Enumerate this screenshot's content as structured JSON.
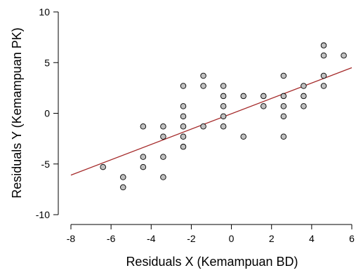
{
  "chart_data": {
    "type": "scatter",
    "title": "",
    "xlabel": "Residuals X (Kemampuan BD)",
    "ylabel": "Residuals Y (Kemampuan PK)",
    "xlim": [
      -8,
      6
    ],
    "ylim": [
      -10,
      10
    ],
    "x_ticks": [
      -8,
      -6,
      -4,
      -2,
      0,
      2,
      4,
      6
    ],
    "y_ticks": [
      -10,
      -5,
      0,
      5,
      10
    ],
    "x_tick_labels": [
      "-8",
      "-6",
      "-4",
      "-2",
      "0",
      "2",
      "4",
      "6"
    ],
    "y_tick_labels": [
      "-10",
      "-5",
      "0",
      "5",
      "10"
    ],
    "grid": false,
    "legend": "none",
    "points": [
      {
        "x": -6.4,
        "y": -5.3
      },
      {
        "x": -5.4,
        "y": -6.3
      },
      {
        "x": -5.4,
        "y": -7.3
      },
      {
        "x": -4.4,
        "y": -1.3
      },
      {
        "x": -4.4,
        "y": -4.3
      },
      {
        "x": -4.4,
        "y": -5.3
      },
      {
        "x": -3.4,
        "y": -1.3
      },
      {
        "x": -3.4,
        "y": -2.3
      },
      {
        "x": -3.4,
        "y": -4.3
      },
      {
        "x": -3.4,
        "y": -6.3
      },
      {
        "x": -2.4,
        "y": 2.7
      },
      {
        "x": -2.4,
        "y": 0.7
      },
      {
        "x": -2.4,
        "y": -0.3
      },
      {
        "x": -2.4,
        "y": -1.3
      },
      {
        "x": -2.4,
        "y": -2.3
      },
      {
        "x": -2.4,
        "y": -3.3
      },
      {
        "x": -1.4,
        "y": 3.7
      },
      {
        "x": -1.4,
        "y": 2.7
      },
      {
        "x": -1.4,
        "y": -1.3
      },
      {
        "x": -0.4,
        "y": 2.7
      },
      {
        "x": -0.4,
        "y": 1.7
      },
      {
        "x": -0.4,
        "y": 0.7
      },
      {
        "x": -0.4,
        "y": -0.3
      },
      {
        "x": -0.4,
        "y": -1.3
      },
      {
        "x": 0.6,
        "y": 1.7
      },
      {
        "x": 0.6,
        "y": -2.3
      },
      {
        "x": 1.6,
        "y": 1.7
      },
      {
        "x": 1.6,
        "y": 0.7
      },
      {
        "x": 2.6,
        "y": 3.7
      },
      {
        "x": 2.6,
        "y": 1.7
      },
      {
        "x": 2.6,
        "y": 0.7
      },
      {
        "x": 2.6,
        "y": -0.3
      },
      {
        "x": 2.6,
        "y": -2.3
      },
      {
        "x": 3.6,
        "y": 2.7
      },
      {
        "x": 3.6,
        "y": 1.7
      },
      {
        "x": 3.6,
        "y": 0.7
      },
      {
        "x": 4.6,
        "y": 6.7
      },
      {
        "x": 4.6,
        "y": 5.7
      },
      {
        "x": 4.6,
        "y": 3.7
      },
      {
        "x": 4.6,
        "y": 2.7
      },
      {
        "x": 5.6,
        "y": 5.7
      }
    ],
    "regression_line": {
      "x": [
        -8,
        6
      ],
      "y": [
        -6.1,
        4.5
      ]
    },
    "point_fill": "#c0c0c0",
    "point_stroke": "#000000",
    "line_color": "#a52a2a"
  }
}
